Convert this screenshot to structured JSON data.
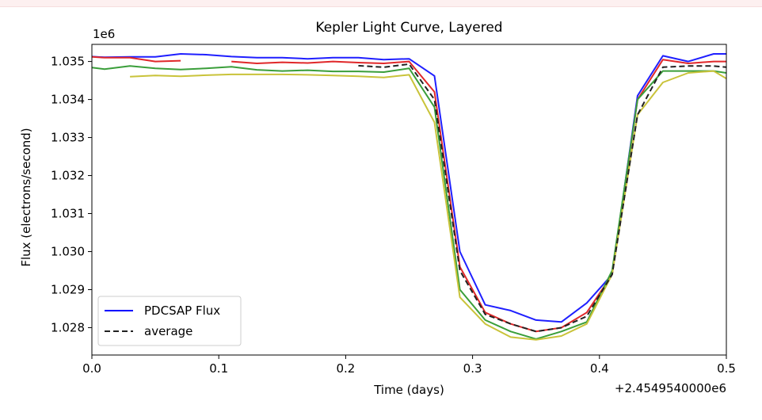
{
  "chart_data": {
    "type": "line",
    "title": "Kepler Light Curve, Layered",
    "xlabel": "Time (days)",
    "ylabel": "Flux (electrons/second)",
    "x_offset_label": "+2.4549540000e6",
    "y_scale_label": "1e6",
    "xlim": [
      0.0,
      0.5
    ],
    "ylim": [
      1.02728,
      1.03545
    ],
    "xticks": [
      "0.0",
      "0.1",
      "0.2",
      "0.3",
      "0.4",
      "0.5"
    ],
    "yticks": [
      "1.028",
      "1.029",
      "1.030",
      "1.031",
      "1.032",
      "1.033",
      "1.034",
      "1.035"
    ],
    "legend_position": "lower-left",
    "legend": [
      {
        "label": "PDCSAP Flux",
        "color": "#0000ff",
        "style": "solid"
      },
      {
        "label": "average",
        "color": "#222222",
        "style": "dashed"
      }
    ],
    "series": [
      {
        "name": "PDCSAP Flux",
        "color": "#1f1fff",
        "style": "solid",
        "x": [
          0.0,
          0.01,
          0.03,
          0.05,
          0.07,
          0.09,
          0.11,
          0.13,
          0.15,
          0.17,
          0.19,
          0.21,
          0.23,
          0.25,
          0.27,
          0.29,
          0.31,
          0.33,
          0.35,
          0.37,
          0.39,
          0.41,
          0.43,
          0.45,
          0.47,
          0.49,
          0.5
        ],
        "y": [
          1.03513,
          1.03511,
          1.03512,
          1.03512,
          1.0352,
          1.03518,
          1.03513,
          1.0351,
          1.0351,
          1.03507,
          1.0351,
          1.0351,
          1.03505,
          1.03507,
          1.03462,
          1.03,
          1.0286,
          1.02845,
          1.0282,
          1.02815,
          1.02865,
          1.0294,
          1.0341,
          1.03515,
          1.035,
          1.0352,
          1.0352
        ]
      },
      {
        "name": "",
        "color": "#e0282a",
        "style": "solid",
        "segments": [
          {
            "x": [
              0.0,
              0.01,
              0.03,
              0.05,
              0.07
            ],
            "y": [
              1.03512,
              1.0351,
              1.0351,
              1.035,
              1.03502
            ]
          },
          {
            "x": [
              0.11,
              0.13,
              0.15,
              0.17,
              0.19,
              0.21,
              0.23,
              0.25,
              0.27,
              0.29,
              0.31,
              0.33,
              0.35,
              0.37,
              0.39,
              0.41,
              0.43,
              0.45,
              0.47,
              0.49,
              0.5
            ],
            "y": [
              1.035,
              1.03495,
              1.03498,
              1.03496,
              1.035,
              1.03497,
              1.03495,
              1.035,
              1.0342,
              1.0296,
              1.0284,
              1.0281,
              1.0279,
              1.028,
              1.0284,
              1.0294,
              1.034,
              1.03505,
              1.03495,
              1.035,
              1.035
            ]
          }
        ]
      },
      {
        "name": "",
        "color": "#3a9e3a",
        "style": "solid",
        "x": [
          0.0,
          0.01,
          0.03,
          0.05,
          0.07,
          0.09,
          0.11,
          0.13,
          0.15,
          0.17,
          0.19,
          0.21,
          0.23,
          0.25,
          0.27,
          0.29,
          0.31,
          0.33,
          0.35,
          0.37,
          0.39,
          0.41,
          0.43,
          0.45,
          0.47,
          0.49,
          0.5
        ],
        "y": [
          1.03484,
          1.0348,
          1.03488,
          1.03482,
          1.03479,
          1.03482,
          1.03486,
          1.03478,
          1.03475,
          1.03477,
          1.03474,
          1.03474,
          1.03472,
          1.03482,
          1.0338,
          1.029,
          1.0282,
          1.0279,
          1.0277,
          1.0279,
          1.02815,
          1.0295,
          1.034,
          1.03475,
          1.03475,
          1.03475,
          1.0347
        ]
      },
      {
        "name": "",
        "color": "#c9c33a",
        "style": "solid",
        "x": [
          0.03,
          0.05,
          0.07,
          0.09,
          0.11,
          0.13,
          0.15,
          0.17,
          0.19,
          0.21,
          0.23,
          0.25,
          0.27,
          0.29,
          0.31,
          0.33,
          0.35,
          0.37,
          0.39,
          0.41,
          0.43,
          0.45,
          0.47,
          0.49,
          0.5
        ],
        "y": [
          1.0346,
          1.03463,
          1.03461,
          1.03464,
          1.03466,
          1.03466,
          1.03466,
          1.03465,
          1.03463,
          1.03461,
          1.03458,
          1.03465,
          1.0334,
          1.0288,
          1.0281,
          1.02775,
          1.02768,
          1.02778,
          1.0281,
          1.0294,
          1.0336,
          1.03445,
          1.0347,
          1.03475,
          1.03455
        ]
      },
      {
        "name": "average",
        "color": "#222222",
        "style": "dashed",
        "x": [
          0.21,
          0.23,
          0.25,
          0.27,
          0.29,
          0.31,
          0.33,
          0.35,
          0.37,
          0.39,
          0.41,
          0.43,
          0.45,
          0.47,
          0.49,
          0.5
        ],
        "y": [
          1.03489,
          1.03485,
          1.03493,
          1.034,
          1.0295,
          1.02835,
          1.0281,
          1.0279,
          1.028,
          1.0283,
          1.0294,
          1.0336,
          1.03485,
          1.03488,
          1.03488,
          1.03485
        ]
      }
    ]
  }
}
